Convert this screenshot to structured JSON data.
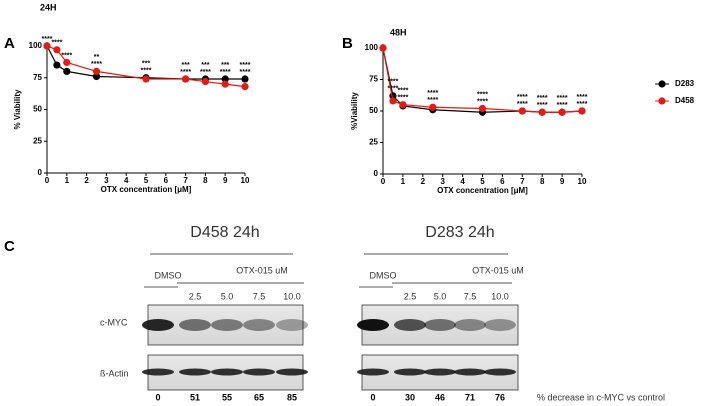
{
  "chart_data": [
    {
      "type": "line",
      "panel_label": "A",
      "title": "24H",
      "x_label": "OTX concentration [μM]",
      "y_label": "% Viability",
      "x": [
        0,
        0.5,
        1,
        2.5,
        5,
        7,
        8,
        9,
        10
      ],
      "xlim": [
        0,
        10
      ],
      "xticks": [
        0,
        1,
        2,
        3,
        4,
        5,
        6,
        7,
        8,
        9,
        10
      ],
      "ylim": [
        0,
        100
      ],
      "yticks": [
        0,
        25,
        50,
        75,
        100
      ],
      "legend": false,
      "series": [
        {
          "name": "D283",
          "color": "#000000",
          "values": [
            100,
            85,
            80,
            76,
            75,
            74,
            74,
            74,
            74
          ],
          "significance": [
            "****",
            "****",
            "****",
            "****",
            "****",
            "****",
            "****",
            "****",
            "****"
          ]
        },
        {
          "name": "D458",
          "color": "#e8190f",
          "values": [
            100,
            97,
            87,
            80,
            74,
            74,
            72,
            70,
            68
          ],
          "significance": [
            null,
            null,
            null,
            "**",
            "***",
            "***",
            "***",
            "***",
            "****"
          ]
        }
      ]
    },
    {
      "type": "line",
      "panel_label": "B",
      "title": "48H",
      "x_label": "OTX concentration [μM]",
      "y_label": "%Viability",
      "x": [
        0,
        0.5,
        1,
        2.5,
        5,
        7,
        8,
        9,
        10
      ],
      "xlim": [
        0,
        10
      ],
      "xticks": [
        0,
        1,
        2,
        3,
        4,
        5,
        6,
        7,
        8,
        9,
        10
      ],
      "ylim": [
        0,
        100
      ],
      "yticks": [
        0,
        25,
        50,
        75,
        100
      ],
      "legend": true,
      "legend_position": "right",
      "series": [
        {
          "name": "D283",
          "color": "#000000",
          "values": [
            100,
            62,
            54,
            51,
            49,
            50,
            49,
            49,
            50
          ],
          "significance": [
            null,
            "****",
            "****",
            "****",
            "****",
            "****",
            "****",
            "****",
            "****"
          ]
        },
        {
          "name": "D458",
          "color": "#e8190f",
          "values": [
            100,
            58,
            55,
            53,
            52,
            50,
            49,
            49,
            50
          ],
          "significance": [
            null,
            "****",
            "****",
            "****",
            "****",
            "****",
            "****",
            "****",
            "****"
          ]
        }
      ]
    }
  ],
  "blot": {
    "panel_label": "C",
    "rows": [
      "c-MYC",
      "ß-Actin"
    ],
    "footer": "% decrease in c-MYC vs control",
    "groups": [
      {
        "title": "D458 24h",
        "control": "DMSO",
        "treatment": "OTX-015 uM",
        "doses": [
          "2.5",
          "5.0",
          "7.5",
          "10.0"
        ],
        "percent_decrease": [
          "0",
          "51",
          "55",
          "65",
          "85"
        ]
      },
      {
        "title": "D283 24h",
        "control": "DMSO",
        "treatment": "OTX-015 uM",
        "doses": [
          "2.5",
          "5.0",
          "7.5",
          "10.0"
        ],
        "percent_decrease": [
          "0",
          "30",
          "46",
          "71",
          "76"
        ]
      }
    ]
  }
}
